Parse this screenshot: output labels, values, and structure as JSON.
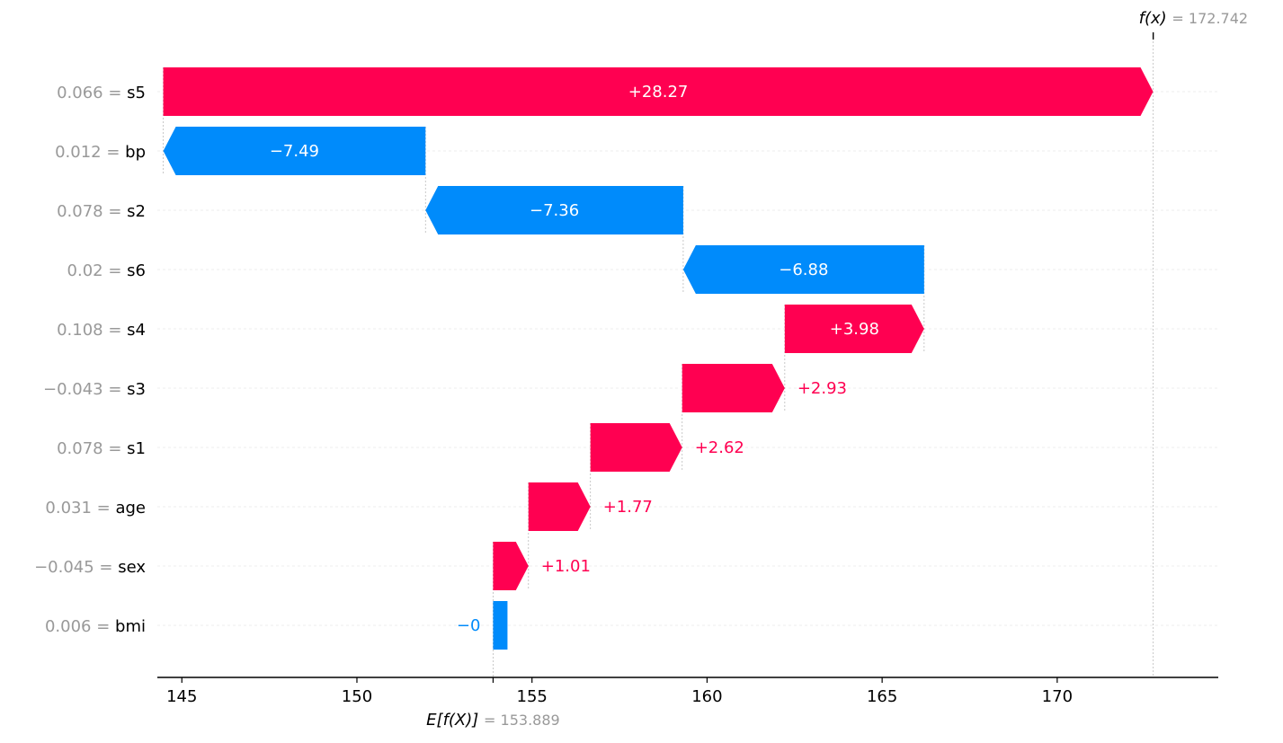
{
  "chart_data": {
    "type": "waterfall",
    "base_value": 153.889,
    "output_value": 172.742,
    "base_value_label": "153.889",
    "output_value_label": "172.742",
    "base_label_prefix": "E[f(X)]",
    "output_label_prefix": "f(x)",
    "equals": "=",
    "xlim": [
      144.3,
      174.6
    ],
    "xticks": [
      145,
      150,
      155,
      160,
      165,
      170
    ],
    "grid": "horizontal-dashed",
    "colors": {
      "positive": "#ff0051",
      "negative": "#008bfb",
      "feature_value": "#999999",
      "feature_name": "#000000",
      "axis": "#000000",
      "guide": "#bbbbbb"
    },
    "features": [
      {
        "name": "s5",
        "value": "0.066",
        "shap": 28.27,
        "label": "+28.27"
      },
      {
        "name": "bp",
        "value": "0.012",
        "shap": -7.49,
        "label": "−7.49"
      },
      {
        "name": "s2",
        "value": "0.078",
        "shap": -7.36,
        "label": "−7.36"
      },
      {
        "name": "s6",
        "value": "0.02",
        "shap": -6.88,
        "label": "−6.88"
      },
      {
        "name": "s4",
        "value": "0.108",
        "shap": 3.98,
        "label": "+3.98"
      },
      {
        "name": "s3",
        "value": "−0.043",
        "shap": 2.93,
        "label": "+2.93"
      },
      {
        "name": "s1",
        "value": "0.078",
        "shap": 2.62,
        "label": "+2.62"
      },
      {
        "name": "age",
        "value": "0.031",
        "shap": 1.77,
        "label": "+1.77"
      },
      {
        "name": "sex",
        "value": "−0.045",
        "shap": 1.01,
        "label": "+1.01"
      },
      {
        "name": "bmi",
        "value": "0.006",
        "shap": -0.0,
        "label": "−0"
      }
    ]
  }
}
